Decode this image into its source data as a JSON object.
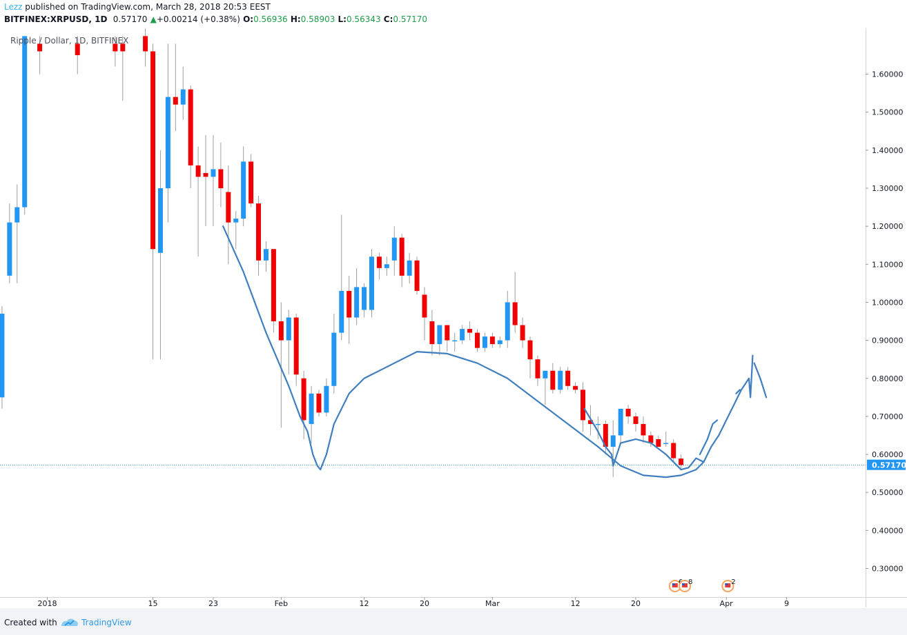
{
  "header": {
    "author": "Lezz",
    "published_text": "published on TradingView.com, March 28, 2018 20:53 EEST",
    "symbol": "BITFINEX:XRPUSD, 1D",
    "last": "0.57170",
    "change_arrow": "▲",
    "change": "+0.00214 (+0.38%)",
    "o_label": "O:",
    "o_value": "0.56936",
    "h_label": "H:",
    "h_value": "0.58903",
    "l_label": "L:",
    "l_value": "0.56343",
    "c_label": "C:",
    "c_value": "0.57170"
  },
  "legend_title": "Ripple / Dollar, 1D, BITFINEX",
  "footer": {
    "created_with": "Created with",
    "brand": "TradingView"
  },
  "colors": {
    "up": "#2196f3",
    "down": "#f00000",
    "wick": "#9e9e9e",
    "drawing": "#3f7fc0",
    "price_line": "#2196a3",
    "price_label_bg": "#2196f3"
  },
  "chart_data": {
    "type": "candlestick",
    "title": "Ripple / Dollar, 1D, BITFINEX",
    "ylim": [
      0.2,
      1.7
    ],
    "y_ticks": [
      0.3,
      0.4,
      0.5,
      0.6,
      0.7,
      0.8,
      0.9,
      1.0,
      1.1,
      1.2,
      1.3,
      1.4,
      1.5,
      1.6
    ],
    "y_tick_labels": [
      "0.30000",
      "0.40000",
      "0.50000",
      "0.60000",
      "0.70000",
      "0.80000",
      "0.90000",
      "1.00000",
      "1.10000",
      "1.20000",
      "1.30000",
      "1.40000",
      "1.50000",
      "1.60000"
    ],
    "x_labels": [
      {
        "label": "2018",
        "day": 1
      },
      {
        "label": "15",
        "day": 15
      },
      {
        "label": "23",
        "day": 23
      },
      {
        "label": "Feb",
        "day": 32
      },
      {
        "label": "12",
        "day": 43
      },
      {
        "label": "20",
        "day": 51
      },
      {
        "label": "Mar",
        "day": 60
      },
      {
        "label": "12",
        "day": 71
      },
      {
        "label": "20",
        "day": 79
      },
      {
        "label": "Apr",
        "day": 91
      },
      {
        "label": "9",
        "day": 99
      }
    ],
    "last_price": 0.5717,
    "last_price_label": "0.57170",
    "candles": [
      {
        "d": -5,
        "o": 0.75,
        "h": 0.99,
        "l": 0.72,
        "c": 0.97
      },
      {
        "d": -4,
        "o": 1.07,
        "h": 1.26,
        "l": 1.05,
        "c": 1.21
      },
      {
        "d": -3,
        "o": 1.21,
        "h": 1.31,
        "l": 1.05,
        "c": 1.25
      },
      {
        "d": -2,
        "o": 1.25,
        "h": 1.7,
        "l": 1.23,
        "c": 1.7
      },
      {
        "d": 0,
        "o": 1.68,
        "h": 1.7,
        "l": 1.6,
        "c": 1.66
      },
      {
        "d": 5,
        "o": 1.68,
        "h": 1.7,
        "l": 1.6,
        "c": 1.65
      },
      {
        "d": 10,
        "o": 1.68,
        "h": 1.7,
        "l": 1.62,
        "c": 1.66
      },
      {
        "d": 11,
        "o": 1.68,
        "h": 1.7,
        "l": 1.53,
        "c": 1.66
      },
      {
        "d": 14,
        "o": 1.7,
        "h": 1.72,
        "l": 1.62,
        "c": 1.66
      },
      {
        "d": 15,
        "o": 1.66,
        "h": 1.68,
        "l": 0.85,
        "c": 1.14
      },
      {
        "d": 16,
        "o": 1.13,
        "h": 1.4,
        "l": 0.85,
        "c": 1.3
      },
      {
        "d": 17,
        "o": 1.3,
        "h": 1.68,
        "l": 1.21,
        "c": 1.54
      },
      {
        "d": 18,
        "o": 1.54,
        "h": 1.68,
        "l": 1.45,
        "c": 1.52
      },
      {
        "d": 19,
        "o": 1.52,
        "h": 1.62,
        "l": 1.48,
        "c": 1.56
      },
      {
        "d": 20,
        "o": 1.56,
        "h": 1.57,
        "l": 1.3,
        "c": 1.36
      },
      {
        "d": 21,
        "o": 1.36,
        "h": 1.41,
        "l": 1.12,
        "c": 1.33
      },
      {
        "d": 22,
        "o": 1.34,
        "h": 1.44,
        "l": 1.2,
        "c": 1.33
      },
      {
        "d": 23,
        "o": 1.33,
        "h": 1.44,
        "l": 1.2,
        "c": 1.35
      },
      {
        "d": 24,
        "o": 1.35,
        "h": 1.42,
        "l": 1.25,
        "c": 1.3
      },
      {
        "d": 25,
        "o": 1.29,
        "h": 1.36,
        "l": 1.1,
        "c": 1.21
      },
      {
        "d": 26,
        "o": 1.21,
        "h": 1.24,
        "l": 1.14,
        "c": 1.22
      },
      {
        "d": 27,
        "o": 1.22,
        "h": 1.41,
        "l": 1.2,
        "c": 1.37
      },
      {
        "d": 28,
        "o": 1.37,
        "h": 1.39,
        "l": 1.25,
        "c": 1.26
      },
      {
        "d": 29,
        "o": 1.26,
        "h": 1.28,
        "l": 1.07,
        "c": 1.11
      },
      {
        "d": 30,
        "o": 1.11,
        "h": 1.16,
        "l": 1.08,
        "c": 1.14
      },
      {
        "d": 31,
        "o": 1.14,
        "h": 1.14,
        "l": 0.92,
        "c": 0.95
      },
      {
        "d": 32,
        "o": 0.95,
        "h": 1.0,
        "l": 0.67,
        "c": 0.9
      },
      {
        "d": 33,
        "o": 0.9,
        "h": 0.98,
        "l": 0.81,
        "c": 0.96
      },
      {
        "d": 34,
        "o": 0.96,
        "h": 0.97,
        "l": 0.78,
        "c": 0.81
      },
      {
        "d": 35,
        "o": 0.8,
        "h": 0.82,
        "l": 0.64,
        "c": 0.69
      },
      {
        "d": 36,
        "o": 0.68,
        "h": 0.78,
        "l": 0.63,
        "c": 0.76
      },
      {
        "d": 37,
        "o": 0.76,
        "h": 0.77,
        "l": 0.7,
        "c": 0.71
      },
      {
        "d": 38,
        "o": 0.71,
        "h": 0.8,
        "l": 0.7,
        "c": 0.78
      },
      {
        "d": 39,
        "o": 0.78,
        "h": 0.97,
        "l": 0.76,
        "c": 0.92
      },
      {
        "d": 40,
        "o": 0.92,
        "h": 1.23,
        "l": 0.9,
        "c": 1.03
      },
      {
        "d": 41,
        "o": 1.03,
        "h": 1.07,
        "l": 0.89,
        "c": 0.96
      },
      {
        "d": 42,
        "o": 0.96,
        "h": 1.09,
        "l": 0.94,
        "c": 1.04
      },
      {
        "d": 43,
        "o": 0.98,
        "h": 1.05,
        "l": 0.96,
        "c": 1.04
      },
      {
        "d": 44,
        "o": 0.98,
        "h": 1.14,
        "l": 0.96,
        "c": 1.12
      },
      {
        "d": 45,
        "o": 1.12,
        "h": 1.13,
        "l": 1.06,
        "c": 1.09
      },
      {
        "d": 46,
        "o": 1.09,
        "h": 1.12,
        "l": 1.07,
        "c": 1.1
      },
      {
        "d": 47,
        "o": 1.11,
        "h": 1.2,
        "l": 1.07,
        "c": 1.17
      },
      {
        "d": 48,
        "o": 1.17,
        "h": 1.18,
        "l": 1.04,
        "c": 1.07
      },
      {
        "d": 49,
        "o": 1.07,
        "h": 1.13,
        "l": 1.05,
        "c": 1.11
      },
      {
        "d": 50,
        "o": 1.11,
        "h": 1.12,
        "l": 1.02,
        "c": 1.03
      },
      {
        "d": 51,
        "o": 1.02,
        "h": 1.04,
        "l": 0.9,
        "c": 0.96
      },
      {
        "d": 52,
        "o": 0.95,
        "h": 0.98,
        "l": 0.86,
        "c": 0.89
      },
      {
        "d": 53,
        "o": 0.89,
        "h": 0.94,
        "l": 0.86,
        "c": 0.94
      },
      {
        "d": 54,
        "o": 0.94,
        "h": 0.94,
        "l": 0.87,
        "c": 0.9
      },
      {
        "d": 55,
        "o": 0.9,
        "h": 0.92,
        "l": 0.87,
        "c": 0.9
      },
      {
        "d": 56,
        "o": 0.9,
        "h": 0.94,
        "l": 0.89,
        "c": 0.93
      },
      {
        "d": 57,
        "o": 0.93,
        "h": 0.95,
        "l": 0.9,
        "c": 0.92
      },
      {
        "d": 58,
        "o": 0.92,
        "h": 0.93,
        "l": 0.87,
        "c": 0.88
      },
      {
        "d": 59,
        "o": 0.88,
        "h": 0.92,
        "l": 0.87,
        "c": 0.91
      },
      {
        "d": 60,
        "o": 0.91,
        "h": 0.92,
        "l": 0.88,
        "c": 0.89
      },
      {
        "d": 61,
        "o": 0.89,
        "h": 0.91,
        "l": 0.88,
        "c": 0.9
      },
      {
        "d": 62,
        "o": 0.9,
        "h": 1.03,
        "l": 0.88,
        "c": 1.0
      },
      {
        "d": 63,
        "o": 1.0,
        "h": 1.08,
        "l": 0.92,
        "c": 0.94
      },
      {
        "d": 64,
        "o": 0.94,
        "h": 0.96,
        "l": 0.88,
        "c": 0.9
      },
      {
        "d": 65,
        "o": 0.9,
        "h": 0.91,
        "l": 0.8,
        "c": 0.85
      },
      {
        "d": 66,
        "o": 0.85,
        "h": 0.86,
        "l": 0.78,
        "c": 0.8
      },
      {
        "d": 67,
        "o": 0.8,
        "h": 0.82,
        "l": 0.73,
        "c": 0.82
      },
      {
        "d": 68,
        "o": 0.82,
        "h": 0.84,
        "l": 0.76,
        "c": 0.77
      },
      {
        "d": 69,
        "o": 0.77,
        "h": 0.83,
        "l": 0.76,
        "c": 0.82
      },
      {
        "d": 70,
        "o": 0.82,
        "h": 0.83,
        "l": 0.77,
        "c": 0.78
      },
      {
        "d": 71,
        "o": 0.78,
        "h": 0.79,
        "l": 0.76,
        "c": 0.77
      },
      {
        "d": 72,
        "o": 0.77,
        "h": 0.79,
        "l": 0.66,
        "c": 0.69
      },
      {
        "d": 73,
        "o": 0.69,
        "h": 0.73,
        "l": 0.65,
        "c": 0.68
      },
      {
        "d": 74,
        "o": 0.68,
        "h": 0.7,
        "l": 0.64,
        "c": 0.68
      },
      {
        "d": 75,
        "o": 0.68,
        "h": 0.69,
        "l": 0.6,
        "c": 0.62
      },
      {
        "d": 76,
        "o": 0.62,
        "h": 0.69,
        "l": 0.54,
        "c": 0.65
      },
      {
        "d": 77,
        "o": 0.65,
        "h": 0.72,
        "l": 0.63,
        "c": 0.72
      },
      {
        "d": 78,
        "o": 0.72,
        "h": 0.73,
        "l": 0.68,
        "c": 0.7
      },
      {
        "d": 79,
        "o": 0.7,
        "h": 0.71,
        "l": 0.66,
        "c": 0.68
      },
      {
        "d": 80,
        "o": 0.68,
        "h": 0.7,
        "l": 0.63,
        "c": 0.65
      },
      {
        "d": 81,
        "o": 0.65,
        "h": 0.66,
        "l": 0.62,
        "c": 0.63
      },
      {
        "d": 82,
        "o": 0.64,
        "h": 0.65,
        "l": 0.62,
        "c": 0.62
      },
      {
        "d": 83,
        "o": 0.63,
        "h": 0.66,
        "l": 0.62,
        "c": 0.63
      },
      {
        "d": 84,
        "o": 0.63,
        "h": 0.64,
        "l": 0.58,
        "c": 0.59
      },
      {
        "d": 85,
        "o": 0.589,
        "h": 0.6,
        "l": 0.563,
        "c": 0.572
      }
    ],
    "drawings": [
      {
        "name": "left-bottom-curve",
        "points": [
          [
            24.3,
            1.2
          ],
          [
            27,
            1.08
          ],
          [
            30,
            0.92
          ],
          [
            33,
            0.78
          ],
          [
            34.5,
            0.7
          ],
          [
            35.5,
            0.66
          ],
          [
            36.2,
            0.6
          ],
          [
            36.8,
            0.57
          ],
          [
            37.2,
            0.56
          ],
          [
            38,
            0.6
          ],
          [
            39,
            0.68
          ],
          [
            40,
            0.72
          ],
          [
            41,
            0.76
          ],
          [
            43,
            0.8
          ],
          [
            46,
            0.83
          ],
          [
            50,
            0.87
          ],
          [
            54,
            0.865
          ],
          [
            58,
            0.84
          ],
          [
            62,
            0.8
          ],
          [
            66,
            0.74
          ],
          [
            70,
            0.68
          ],
          [
            74,
            0.62
          ],
          [
            77,
            0.57
          ],
          [
            80,
            0.545
          ],
          [
            83,
            0.54
          ],
          [
            85,
            0.545
          ],
          [
            87,
            0.56
          ],
          [
            88,
            0.58
          ]
        ]
      },
      {
        "name": "inner-cup",
        "points": [
          [
            72.2,
            0.72
          ],
          [
            74,
            0.66
          ],
          [
            75,
            0.62
          ],
          [
            75.8,
            0.6
          ],
          [
            76,
            0.57
          ],
          [
            77,
            0.63
          ],
          [
            78,
            0.635
          ],
          [
            79,
            0.64
          ],
          [
            81,
            0.63
          ],
          [
            83,
            0.6
          ],
          [
            84,
            0.58
          ],
          [
            85,
            0.56
          ],
          [
            86,
            0.565
          ],
          [
            87,
            0.59
          ],
          [
            88,
            0.58
          ],
          [
            89,
            0.62
          ],
          [
            90,
            0.65
          ],
          [
            91,
            0.69
          ],
          [
            92,
            0.73
          ],
          [
            93,
            0.77
          ],
          [
            94,
            0.8
          ],
          [
            94.2,
            0.75
          ],
          [
            94.5,
            0.86
          ]
        ]
      },
      {
        "name": "right-up-wave",
        "points": [
          [
            87.5,
            0.6
          ],
          [
            88.5,
            0.64
          ],
          [
            89.2,
            0.68
          ],
          [
            89.8,
            0.69
          ]
        ]
      },
      {
        "name": "right-hook",
        "points": [
          [
            94.7,
            0.84
          ],
          [
            95.5,
            0.8
          ],
          [
            96.3,
            0.75
          ]
        ]
      },
      {
        "name": "small-tail",
        "points": [
          [
            92.3,
            0.76
          ],
          [
            92.8,
            0.77
          ]
        ]
      }
    ],
    "event_markers": [
      {
        "day": 84.2,
        "label": "6"
      },
      {
        "day": 85.5,
        "label": "8"
      },
      {
        "day": 91.2,
        "label": "2"
      }
    ]
  }
}
